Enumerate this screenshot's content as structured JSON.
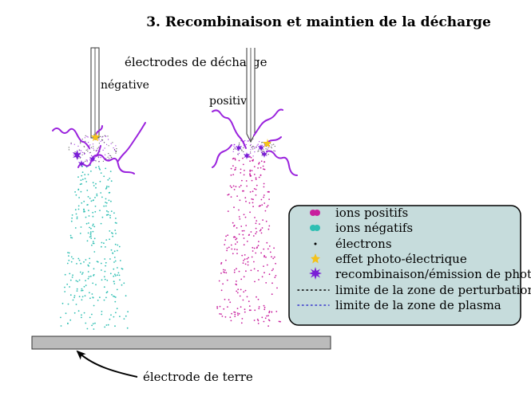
{
  "title": "3. Recombinaison et maintien de la décharge",
  "labels": {
    "discharge_electrodes": "électrodes de décharge",
    "negative": "négative",
    "positive": "positive",
    "ground_electrode": "électrode de terre"
  },
  "legend": {
    "items": [
      {
        "icon": "positive-ion-icon",
        "label": "ions positifs"
      },
      {
        "icon": "negative-ion-icon",
        "label": "ions négatifs"
      },
      {
        "icon": "electron-icon",
        "label": "électrons"
      },
      {
        "icon": "photoelectric-star-icon",
        "label": "effet photo-électrique"
      },
      {
        "icon": "recombination-star-icon",
        "label": "recombinaison/émission de photon"
      },
      {
        "icon": "perturbation-dotted-line-icon",
        "label": "limite de la zone de perturbation"
      },
      {
        "icon": "plasma-dotted-line-icon",
        "label": "limite de la zone de plasma"
      }
    ]
  },
  "colors": {
    "positive_ion": "#c8209e",
    "negative_ion": "#2fbfb3",
    "photon_wave": "#9a22dd",
    "recombination_star": "#7a1fd6",
    "photoelectric_star": "#f4c21a",
    "legend_bg": "#c6dcdc",
    "ground_plate": "#bbbbbb",
    "plasma_limit": "#3333cc"
  }
}
